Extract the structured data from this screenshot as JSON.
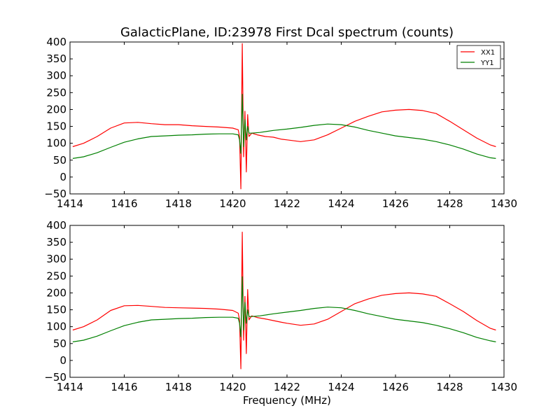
{
  "title": "GalacticPlane, ID:23978 First Dcal spectrum (counts)",
  "xlabel": "Frequency (MHz)",
  "colors": {
    "XX1": "#ff0000",
    "YY1": "#008000"
  },
  "legend": {
    "entries": [
      {
        "name": "XX1",
        "color": "#ff0000"
      },
      {
        "name": "YY1",
        "color": "#008000"
      }
    ],
    "placement": "top-right"
  },
  "chart_data": [
    {
      "type": "line",
      "panel": "top",
      "xlim": [
        1414,
        1430
      ],
      "ylim": [
        -50,
        400
      ],
      "xticks": [
        1414,
        1416,
        1418,
        1420,
        1422,
        1424,
        1426,
        1428,
        1430
      ],
      "yticks": [
        -50,
        0,
        50,
        100,
        150,
        200,
        250,
        300,
        350,
        400
      ],
      "series": [
        {
          "name": "XX1",
          "color": "#ff0000",
          "x": [
            1414.1,
            1414.5,
            1415,
            1415.5,
            1416,
            1416.5,
            1417,
            1417.5,
            1418,
            1418.5,
            1419,
            1419.5,
            1420.0,
            1420.2,
            1420.25,
            1420.3,
            1420.35,
            1420.4,
            1420.45,
            1420.5,
            1420.55,
            1420.6,
            1420.7,
            1420.9,
            1421.2,
            1421.5,
            1421.8,
            1422,
            1422.5,
            1423,
            1423.5,
            1424,
            1424.5,
            1425,
            1425.5,
            1426,
            1426.5,
            1427,
            1427.5,
            1428,
            1428.5,
            1429,
            1429.5,
            1429.7
          ],
          "y": [
            90,
            100,
            120,
            145,
            160,
            162,
            158,
            155,
            155,
            152,
            150,
            148,
            145,
            140,
            120,
            -35,
            395,
            60,
            195,
            15,
            185,
            120,
            130,
            125,
            120,
            118,
            112,
            110,
            105,
            110,
            125,
            145,
            165,
            180,
            193,
            198,
            200,
            197,
            188,
            165,
            140,
            115,
            95,
            90
          ]
        },
        {
          "name": "YY1",
          "color": "#008000",
          "x": [
            1414.1,
            1414.5,
            1415,
            1415.5,
            1416,
            1416.5,
            1417,
            1417.5,
            1418,
            1418.5,
            1419,
            1419.5,
            1420.0,
            1420.2,
            1420.25,
            1420.3,
            1420.35,
            1420.4,
            1420.45,
            1420.5,
            1420.55,
            1420.6,
            1420.7,
            1421,
            1421.5,
            1422,
            1422.5,
            1423,
            1423.5,
            1424,
            1424.5,
            1425,
            1425.5,
            1426,
            1426.5,
            1427,
            1427.5,
            1428,
            1428.5,
            1429,
            1429.5,
            1429.7
          ],
          "y": [
            55,
            60,
            72,
            88,
            103,
            113,
            120,
            122,
            124,
            125,
            127,
            128,
            128,
            125,
            110,
            70,
            245,
            90,
            170,
            110,
            150,
            130,
            130,
            132,
            138,
            142,
            147,
            153,
            157,
            155,
            148,
            138,
            130,
            122,
            117,
            112,
            105,
            95,
            83,
            68,
            57,
            55
          ]
        }
      ]
    },
    {
      "type": "line",
      "panel": "bottom",
      "xlim": [
        1414,
        1430
      ],
      "ylim": [
        -50,
        400
      ],
      "xticks": [
        1414,
        1416,
        1418,
        1420,
        1422,
        1424,
        1426,
        1428,
        1430
      ],
      "yticks": [
        -50,
        0,
        50,
        100,
        150,
        200,
        250,
        300,
        350,
        400
      ],
      "xlabel": "Frequency (MHz)",
      "series": [
        {
          "name": "XX1",
          "color": "#ff0000",
          "x": [
            1414.1,
            1414.5,
            1415,
            1415.5,
            1416,
            1416.5,
            1417,
            1417.5,
            1418,
            1418.5,
            1419,
            1419.5,
            1420.0,
            1420.2,
            1420.25,
            1420.3,
            1420.35,
            1420.4,
            1420.45,
            1420.5,
            1420.55,
            1420.6,
            1420.7,
            1420.9,
            1421.2,
            1421.5,
            1421.8,
            1422,
            1422.5,
            1423,
            1423.5,
            1424,
            1424.5,
            1425,
            1425.5,
            1426,
            1426.5,
            1427,
            1427.5,
            1428,
            1428.5,
            1429,
            1429.5,
            1429.7
          ],
          "y": [
            90,
            100,
            120,
            148,
            162,
            163,
            160,
            157,
            156,
            155,
            154,
            152,
            148,
            140,
            120,
            -25,
            380,
            60,
            190,
            20,
            210,
            120,
            132,
            127,
            123,
            118,
            113,
            110,
            104,
            108,
            122,
            145,
            168,
            182,
            193,
            198,
            200,
            197,
            190,
            168,
            145,
            118,
            95,
            90
          ]
        },
        {
          "name": "YY1",
          "color": "#008000",
          "x": [
            1414.1,
            1414.5,
            1415,
            1415.5,
            1416,
            1416.5,
            1417,
            1417.5,
            1418,
            1418.5,
            1419,
            1419.5,
            1420.0,
            1420.2,
            1420.25,
            1420.3,
            1420.35,
            1420.4,
            1420.45,
            1420.5,
            1420.55,
            1420.6,
            1420.7,
            1421,
            1421.5,
            1422,
            1422.5,
            1423,
            1423.5,
            1424,
            1424.5,
            1425,
            1425.5,
            1426,
            1426.5,
            1427,
            1427.5,
            1428,
            1428.5,
            1429,
            1429.5,
            1429.7
          ],
          "y": [
            55,
            60,
            72,
            88,
            103,
            113,
            120,
            122,
            124,
            125,
            127,
            128,
            128,
            125,
            110,
            70,
            248,
            90,
            172,
            110,
            150,
            130,
            130,
            132,
            138,
            143,
            148,
            154,
            158,
            156,
            148,
            138,
            130,
            122,
            117,
            112,
            104,
            94,
            82,
            68,
            58,
            55
          ]
        }
      ]
    }
  ]
}
